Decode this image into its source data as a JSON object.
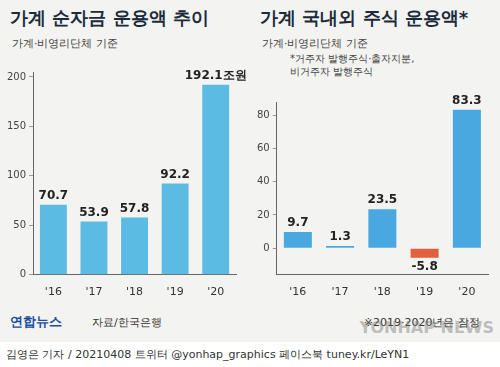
{
  "chart_data": [
    {
      "type": "bar",
      "title": "가계 순자금 운용액 추이",
      "subtitle": "가계·비영리단체 기준",
      "categories": [
        "'16",
        "'17",
        "'18",
        "'19",
        "'20"
      ],
      "values": [
        70.7,
        53.9,
        57.8,
        92.2,
        192.1
      ],
      "value_labels": [
        "70.7",
        "53.9",
        "57.8",
        "92.2",
        "192.1조원"
      ],
      "color": "#5bbbe3",
      "ylim": [
        0,
        205
      ],
      "yticks": [
        0,
        50,
        100,
        150,
        200
      ],
      "grid": false,
      "data_labels": true
    },
    {
      "type": "bar",
      "title": "가계 국내외 주식 운용액*",
      "subtitle": "가계·비영리단체 기준",
      "annotations": [
        "*거주자 발행주식·출자지분,",
        "비거주자 발행주식"
      ],
      "categories": [
        "'16",
        "'17",
        "'18",
        "'19",
        "'20"
      ],
      "values": [
        9.7,
        1.3,
        23.5,
        -5.8,
        83.3
      ],
      "colors": [
        "#4aa8e0",
        "#4aa8e0",
        "#4aa8e0",
        "#e2603f",
        "#4aa8e0"
      ],
      "ylim": [
        -16,
        88
      ],
      "yticks": [
        0,
        20,
        40,
        60,
        80
      ],
      "grid": false,
      "data_labels": true
    }
  ],
  "footer": {
    "logo": "연합뉴스",
    "source": "자료/한국은행",
    "note": "※2019·2020년은 잠정",
    "credit": "김영은 기자 / 20210408  트위터 @yonhap_graphics  페이스북 tuney.kr/LeYN1",
    "watermark": "YONHAP NEWS"
  }
}
